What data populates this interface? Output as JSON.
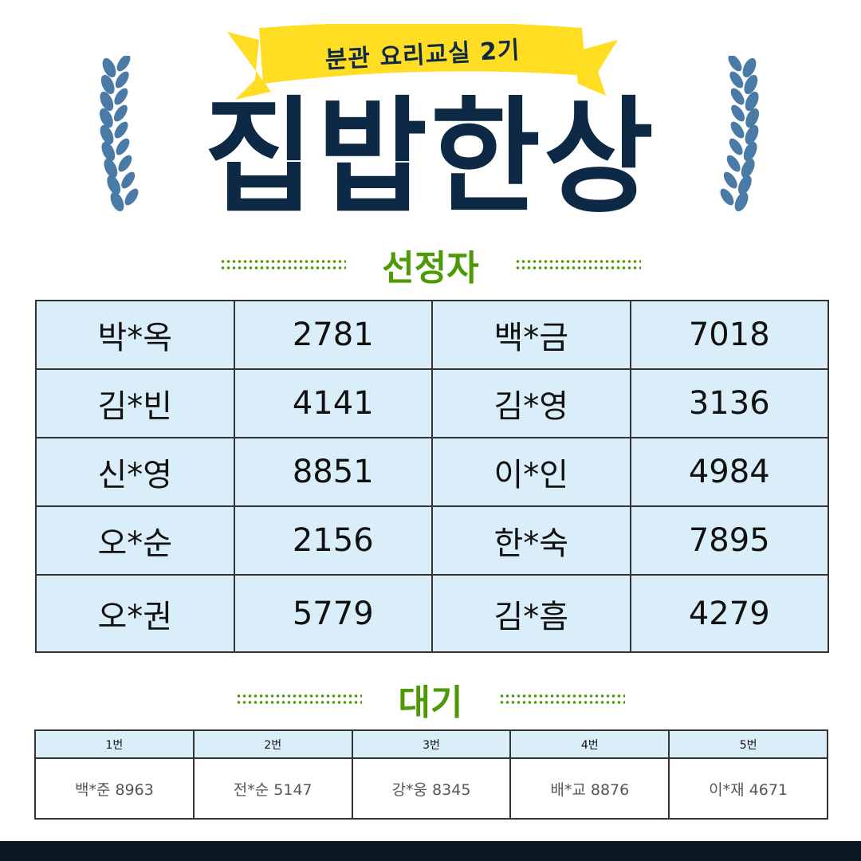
{
  "banner": {
    "ribbon_text": "분관 요리교실 2기",
    "title": "집밥한상"
  },
  "colors": {
    "navy": "#0d2945",
    "laurel": "#4a7ba6",
    "ribbon": "#ffdd22",
    "accent_green": "#4e9a06",
    "cell_bg": "#daeef9",
    "footer": "#0b1823"
  },
  "icons": {
    "left": "laurel-branch-left",
    "right": "laurel-branch-right"
  },
  "selected": {
    "heading": "선정자",
    "rows": [
      [
        "박*옥",
        "2781",
        "백*금",
        "7018"
      ],
      [
        "김*빈",
        "4141",
        "김*영",
        "3136"
      ],
      [
        "신*영",
        "8851",
        "이*인",
        "4984"
      ],
      [
        "오*순",
        "2156",
        "한*숙",
        "7895"
      ],
      [
        "오*권",
        "5779",
        "김*흠",
        "4279"
      ]
    ]
  },
  "waitlist": {
    "heading": "대기",
    "headers": [
      "1번",
      "2번",
      "3번",
      "4번",
      "5번"
    ],
    "entries": [
      "백*준 8963",
      "전*순 5147",
      "강*웅 8345",
      "배*교 8876",
      "이*재 4671"
    ]
  }
}
